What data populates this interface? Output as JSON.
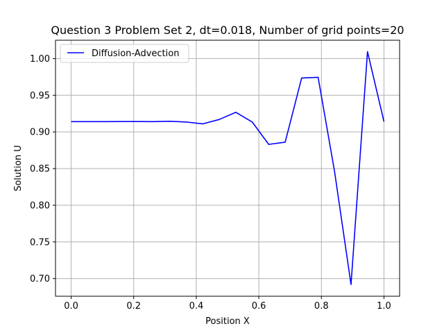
{
  "chart_data": {
    "type": "line",
    "title": "Question 3 Problem Set 2, dt=0.018, Number of grid points=20",
    "xlabel": "Position X",
    "ylabel": "Solution U",
    "xlim": [
      -0.05,
      1.05
    ],
    "ylim": [
      0.676,
      1.025
    ],
    "x_ticks": [
      0.0,
      0.2,
      0.4,
      0.6,
      0.8,
      1.0
    ],
    "x_tick_labels": [
      "0.0",
      "0.2",
      "0.4",
      "0.6",
      "0.8",
      "1.0"
    ],
    "y_ticks": [
      0.7,
      0.75,
      0.8,
      0.85,
      0.9,
      0.95,
      1.0
    ],
    "y_tick_labels": [
      "0.70",
      "0.75",
      "0.80",
      "0.85",
      "0.90",
      "0.95",
      "1.00"
    ],
    "grid": true,
    "legend_position": "upper-left",
    "series": [
      {
        "name": "Diffusion-Advection",
        "color": "#0000ff",
        "x": [
          0.0,
          0.0526,
          0.1053,
          0.1579,
          0.2105,
          0.2632,
          0.3158,
          0.3684,
          0.4211,
          0.4737,
          0.5263,
          0.5789,
          0.6316,
          0.6842,
          0.7368,
          0.7895,
          0.8421,
          0.8947,
          0.9474,
          1.0
        ],
        "y": [
          0.914,
          0.914,
          0.914,
          0.9142,
          0.9142,
          0.914,
          0.9145,
          0.9135,
          0.911,
          0.917,
          0.9268,
          0.9135,
          0.883,
          0.886,
          0.9735,
          0.9745,
          0.846,
          0.692,
          1.0095,
          0.914
        ]
      }
    ]
  }
}
